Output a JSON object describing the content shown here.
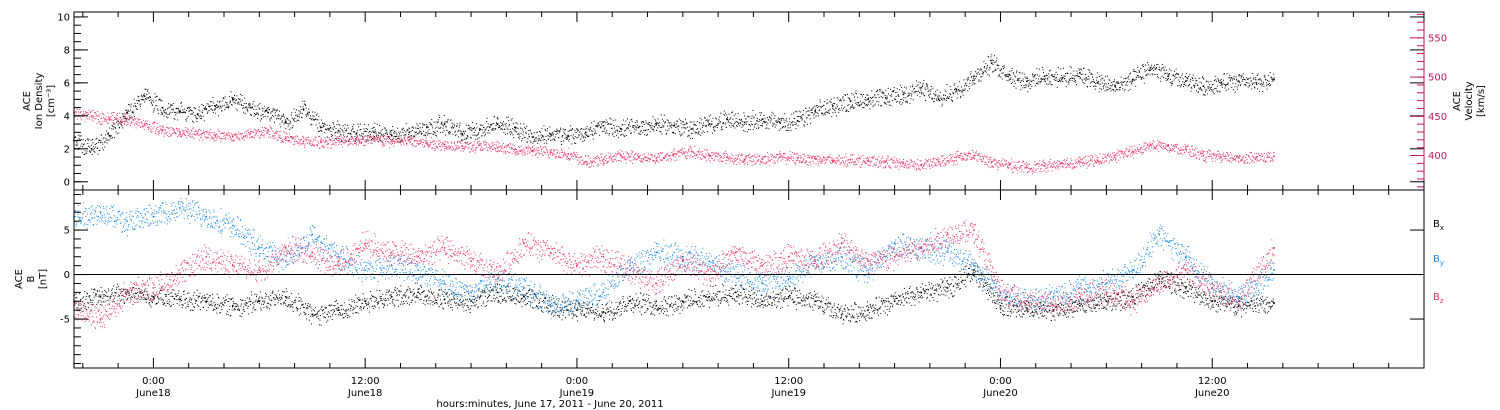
{
  "colors": {
    "black": "#000000",
    "blue": "#1f8be6",
    "pink": "#e8386a",
    "magenta_axis": "#c2185b"
  },
  "x_axis": {
    "title": "hours:minutes, June 17, 2011 - June 20, 2011",
    "ticks": [
      {
        "time": "0:00",
        "date": "June18",
        "hour": 24
      },
      {
        "time": "12:00",
        "date": "June18",
        "hour": 36
      },
      {
        "time": "0:00",
        "date": "June19",
        "hour": 48
      },
      {
        "time": "12:00",
        "date": "June19",
        "hour": 60
      },
      {
        "time": "0:00",
        "date": "June20",
        "hour": 72
      },
      {
        "time": "12:00",
        "date": "June20",
        "hour": 84
      }
    ],
    "range_hours": [
      19.5,
      96
    ]
  },
  "chart_data": [
    {
      "type": "scatter",
      "panel": "top",
      "left_axis": {
        "label_lines": [
          "ACE",
          "Ion Density",
          "[cm⁻³]"
        ],
        "range": [
          -0.5,
          10.3
        ],
        "tick_labels": [
          "0",
          "2",
          "4",
          "6",
          "8",
          "10"
        ],
        "tick_values": [
          0,
          2,
          4,
          6,
          8,
          10
        ]
      },
      "right_axis": {
        "label_lines": [
          "ACE",
          "Velocity",
          "[km/s]"
        ],
        "range": [
          356,
          583
        ],
        "tick_labels": [
          "400",
          "450",
          "500",
          "550"
        ],
        "tick_values": [
          400,
          450,
          500,
          550
        ]
      },
      "series": [
        {
          "color": "#000000",
          "axis": "left",
          "hours": [
            19.5,
            20.5,
            21.5,
            22.5,
            23.5,
            24.5,
            25.5,
            26.5,
            27.5,
            28.5,
            29.5,
            30.5,
            31.5,
            32.5,
            33.5,
            34.5,
            35.5,
            36.5,
            37.5,
            38.5,
            39.5,
            40.5,
            41.5,
            42.5,
            43.5,
            44.5,
            45.5,
            46.5,
            47.5,
            48.5,
            49.5,
            50.5,
            51.5,
            52.5,
            53.5,
            54.5,
            55.5,
            56.5,
            57.5,
            58.5,
            59.5,
            60.5,
            61.5,
            62.5,
            63.5,
            64.5,
            65.5,
            66.5,
            67.5,
            68.5,
            69.5,
            70.5,
            71.5,
            72.5,
            73.5,
            74.5,
            75.5,
            76.5,
            77.5,
            78.5,
            79.5,
            80.5,
            81.5,
            82.5,
            83.5,
            84.5,
            85.5,
            86.5,
            87.5
          ],
          "values": [
            2.5,
            2.0,
            2.8,
            4.2,
            5.2,
            4.5,
            4.3,
            4.1,
            4.6,
            5.0,
            4.5,
            4.2,
            3.6,
            4.4,
            3.3,
            3.1,
            2.9,
            3.0,
            2.8,
            3.0,
            3.3,
            3.5,
            2.9,
            3.2,
            3.5,
            3.3,
            2.7,
            2.9,
            2.8,
            3.0,
            3.4,
            3.2,
            3.3,
            3.5,
            3.4,
            3.2,
            3.5,
            3.8,
            3.6,
            3.8,
            3.6,
            3.7,
            4.3,
            4.6,
            4.9,
            5.0,
            5.1,
            5.3,
            5.7,
            5.0,
            5.6,
            6.4,
            7.2,
            6.5,
            6.1,
            6.4,
            6.3,
            6.6,
            6.0,
            5.8,
            6.2,
            6.9,
            6.4,
            6.1,
            5.8,
            6.0,
            6.1,
            6.0,
            6.2
          ]
        },
        {
          "color": "#e8386a",
          "axis": "right",
          "hours": [
            19.5,
            20.5,
            21.5,
            22.5,
            23.5,
            24.5,
            25.5,
            26.5,
            27.5,
            28.5,
            29.5,
            30.5,
            31.5,
            32.5,
            33.5,
            34.5,
            35.5,
            36.5,
            37.5,
            38.5,
            39.5,
            40.5,
            41.5,
            42.5,
            43.5,
            44.5,
            45.5,
            46.5,
            47.5,
            48.5,
            49.5,
            50.5,
            51.5,
            52.5,
            53.5,
            54.5,
            55.5,
            56.5,
            57.5,
            58.5,
            59.5,
            60.5,
            61.5,
            62.5,
            63.5,
            64.5,
            65.5,
            66.5,
            67.5,
            68.5,
            69.5,
            70.5,
            71.5,
            72.5,
            73.5,
            74.5,
            75.5,
            76.5,
            77.5,
            78.5,
            79.5,
            80.5,
            81.5,
            82.5,
            83.5,
            84.5,
            85.5,
            86.5,
            87.5
          ],
          "values": [
            455,
            450,
            448,
            447,
            440,
            432,
            430,
            428,
            426,
            424,
            428,
            432,
            422,
            418,
            417,
            419,
            420,
            421,
            418,
            420,
            416,
            414,
            412,
            413,
            410,
            408,
            406,
            404,
            402,
            392,
            395,
            400,
            398,
            397,
            402,
            405,
            400,
            398,
            395,
            396,
            398,
            397,
            396,
            394,
            395,
            393,
            392,
            390,
            388,
            392,
            398,
            400,
            392,
            388,
            385,
            387,
            390,
            392,
            394,
            400,
            405,
            414,
            412,
            408,
            400,
            398,
            397,
            398,
            399
          ]
        }
      ]
    },
    {
      "type": "scatter",
      "panel": "bottom",
      "left_axis": {
        "label_lines": [
          "ACE",
          "B",
          "[nT]"
        ],
        "range": [
          -10.5,
          9.5
        ],
        "tick_labels": [
          "-5",
          "0",
          "5"
        ],
        "tick_values": [
          -5,
          0,
          5
        ]
      },
      "zero_line": true,
      "legend": {
        "placement": "right",
        "entries": [
          {
            "text": "B",
            "sub": "x",
            "color": "#000000"
          },
          {
            "text": "B",
            "sub": "y",
            "color": "#1f8be6"
          },
          {
            "text": "B",
            "sub": "z",
            "color": "#e8386a"
          }
        ]
      },
      "series": [
        {
          "name": "Bx",
          "color": "#000000",
          "hours": [
            19.5,
            21.0,
            22.5,
            24.0,
            25.5,
            27.0,
            28.5,
            30.0,
            31.5,
            33.0,
            34.5,
            36.0,
            37.5,
            39.0,
            40.5,
            42.0,
            43.5,
            45.0,
            46.5,
            48.0,
            49.5,
            51.0,
            52.5,
            54.0,
            55.5,
            57.0,
            58.5,
            60.0,
            61.5,
            63.0,
            64.5,
            66.0,
            67.5,
            69.0,
            70.5,
            72.0,
            73.5,
            75.0,
            76.5,
            78.0,
            79.5,
            81.0,
            82.5,
            84.0,
            85.5,
            87.5
          ],
          "values": [
            -3.0,
            -2.5,
            -2.0,
            -2.5,
            -2.8,
            -3.0,
            -3.5,
            -3.0,
            -2.5,
            -4.5,
            -4.0,
            -3.0,
            -2.5,
            -2.0,
            -2.8,
            -3.0,
            -2.0,
            -2.5,
            -3.5,
            -4.0,
            -4.2,
            -3.0,
            -3.5,
            -3.0,
            -2.5,
            -2.0,
            -3.0,
            -2.5,
            -3.0,
            -4.5,
            -4.0,
            -3.0,
            -2.0,
            -1.5,
            0.5,
            -3.5,
            -3.8,
            -4.0,
            -3.5,
            -3.0,
            -2.5,
            -0.5,
            -1.5,
            -3.0,
            -3.5,
            -3.2
          ]
        },
        {
          "name": "By",
          "color": "#1f8be6",
          "hours": [
            19.5,
            21.0,
            22.5,
            24.0,
            25.5,
            27.0,
            28.5,
            30.0,
            31.5,
            33.0,
            34.5,
            36.0,
            37.5,
            39.0,
            40.5,
            42.0,
            43.5,
            45.0,
            46.5,
            48.0,
            49.5,
            51.0,
            52.5,
            54.0,
            55.5,
            57.0,
            58.5,
            60.0,
            61.5,
            63.0,
            64.5,
            66.0,
            67.5,
            69.0,
            70.5,
            72.0,
            73.5,
            75.0,
            76.5,
            78.0,
            79.5,
            81.0,
            82.5,
            84.0,
            85.5,
            87.5
          ],
          "values": [
            6.5,
            7.0,
            6.0,
            6.5,
            7.5,
            6.5,
            5.5,
            3.0,
            1.5,
            4.5,
            2.0,
            0.5,
            1.0,
            0.5,
            -1.0,
            -2.0,
            -0.5,
            -1.5,
            -3.5,
            -3.0,
            -2.0,
            1.0,
            2.5,
            2.0,
            1.5,
            0.0,
            -1.0,
            -0.5,
            1.5,
            2.0,
            0.0,
            3.5,
            3.0,
            2.5,
            1.0,
            -2.0,
            -3.0,
            -2.5,
            -1.5,
            -1.0,
            0.5,
            4.5,
            2.0,
            -1.0,
            -2.5,
            0.5
          ]
        },
        {
          "name": "Bz",
          "color": "#e8386a",
          "hours": [
            19.5,
            21.0,
            22.5,
            24.0,
            25.5,
            27.0,
            28.5,
            30.0,
            31.5,
            33.0,
            34.5,
            36.0,
            37.5,
            39.0,
            40.5,
            42.0,
            43.5,
            45.0,
            46.5,
            48.0,
            49.5,
            51.0,
            52.5,
            54.0,
            55.5,
            57.0,
            58.5,
            60.0,
            61.5,
            63.0,
            64.5,
            66.0,
            67.5,
            69.0,
            70.5,
            72.0,
            73.5,
            75.0,
            76.5,
            78.0,
            79.5,
            81.0,
            82.5,
            84.0,
            85.5,
            87.5
          ],
          "values": [
            -3.5,
            -5.0,
            -2.0,
            -1.5,
            0.0,
            2.0,
            1.0,
            0.5,
            3.0,
            2.5,
            1.0,
            3.5,
            2.5,
            2.0,
            3.0,
            1.5,
            0.0,
            3.5,
            2.5,
            1.0,
            2.0,
            0.5,
            -1.0,
            1.5,
            0.0,
            2.5,
            1.0,
            2.0,
            1.5,
            3.5,
            1.5,
            2.0,
            3.0,
            4.5,
            5.0,
            -2.0,
            -3.0,
            -3.5,
            -2.5,
            -2.0,
            -3.0,
            -1.0,
            0.5,
            -1.5,
            -3.0,
            3.0
          ]
        }
      ]
    }
  ]
}
